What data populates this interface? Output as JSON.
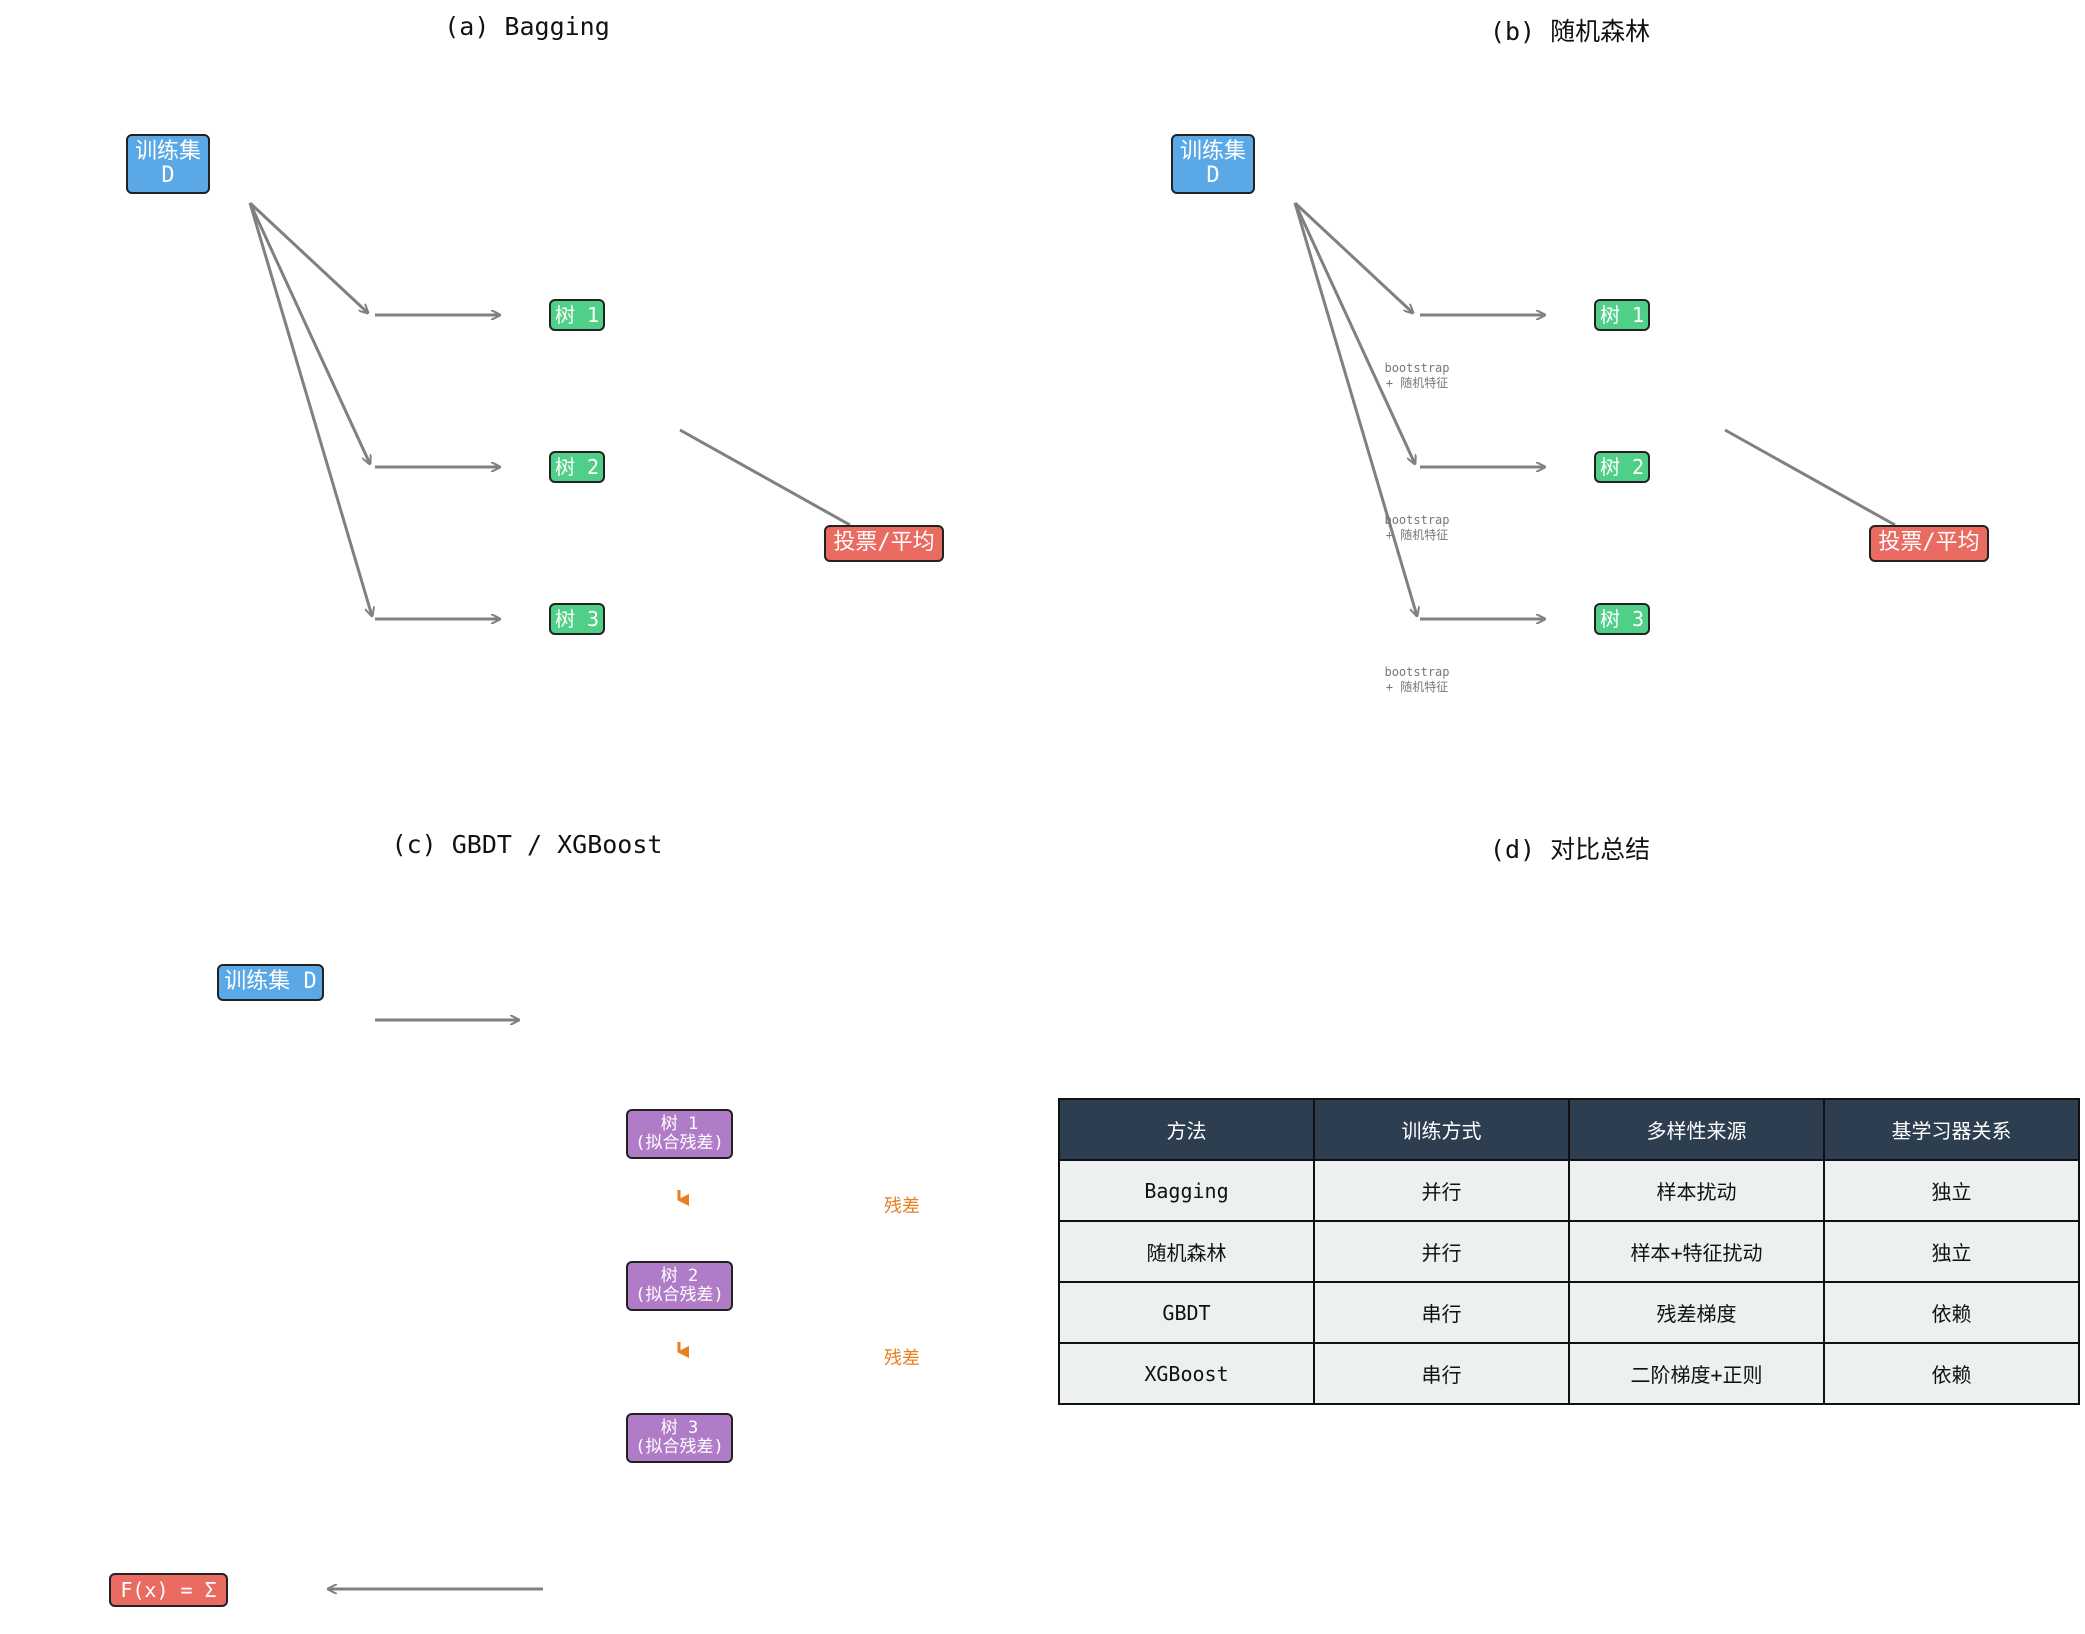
{
  "panel_a": {
    "title": "(a) Bagging",
    "train_set": "训练集\nD",
    "trees": [
      "树 1",
      "树 2",
      "树 3"
    ],
    "aggregate": "投票/平均"
  },
  "panel_b": {
    "title": "(b) 随机森林",
    "train_set": "训练集\nD",
    "trees": [
      "树 1",
      "树 2",
      "树 3"
    ],
    "notes": [
      "bootstrap\n+ 随机特征",
      "bootstrap\n+ 随机特征",
      "bootstrap\n+ 随机特征"
    ],
    "aggregate": "投票/平均"
  },
  "panel_c": {
    "title": "(c) GBDT / XGBoost",
    "train_set": "训练集 D",
    "trees": [
      "树 1\n(拟合残差)",
      "树 2\n(拟合残差)",
      "树 3\n(拟合残差)"
    ],
    "residual_labels": [
      "残差",
      "残差"
    ],
    "output": "F(x) = Σ"
  },
  "panel_d": {
    "title": "(d) 对比总结",
    "headers": [
      "方法",
      "训练方式",
      "多样性来源",
      "基学习器关系"
    ],
    "rows": [
      [
        "Bagging",
        "并行",
        "样本扰动",
        "独立"
      ],
      [
        "随机森林",
        "并行",
        "样本+特征扰动",
        "独立"
      ],
      [
        "GBDT",
        "串行",
        "残差梯度",
        "依赖"
      ],
      [
        "XGBoost",
        "串行",
        "二阶梯度+正则",
        "依赖"
      ]
    ]
  },
  "colors": {
    "train": "#5aa9e6",
    "tree": "#4fcf87",
    "aggregate": "#ea6b61",
    "boost_tree": "#b07cc8",
    "residual": "#e67e22",
    "table_header": "#2c3e50",
    "arrow": "#808080"
  }
}
